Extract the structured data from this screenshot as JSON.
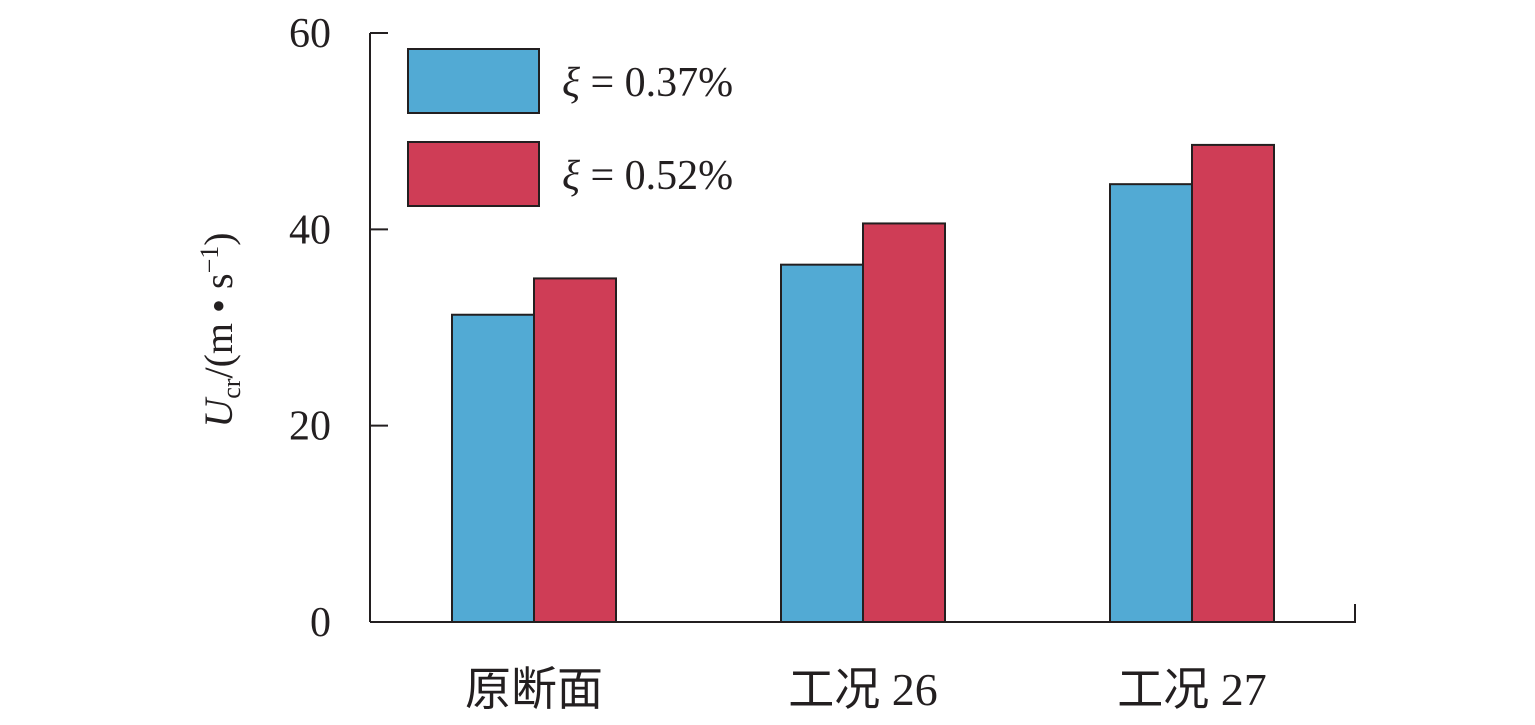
{
  "chart_data": {
    "type": "bar",
    "categories": [
      "原断面",
      "工况 26",
      "工况 27"
    ],
    "series": [
      {
        "name": "ξ = 0.37%",
        "legend_symbol": "ξ",
        "legend_rest": " = 0.37%",
        "color": "#52aad4",
        "values": [
          31.3,
          36.4,
          44.6
        ]
      },
      {
        "name": "ξ = 0.52%",
        "legend_symbol": "ξ",
        "legend_rest": " = 0.52%",
        "color": "#cf3d56",
        "values": [
          35.0,
          40.6,
          48.6
        ]
      }
    ],
    "ylabel": {
      "main": "U",
      "sub": "cr",
      "rest_pre": "/(m • s",
      "sup": "−1",
      "rest_post": ")"
    },
    "yticks": [
      0,
      20,
      40,
      60
    ],
    "ylim": [
      0,
      60
    ],
    "legend_position": "top-left",
    "grid": false
  }
}
